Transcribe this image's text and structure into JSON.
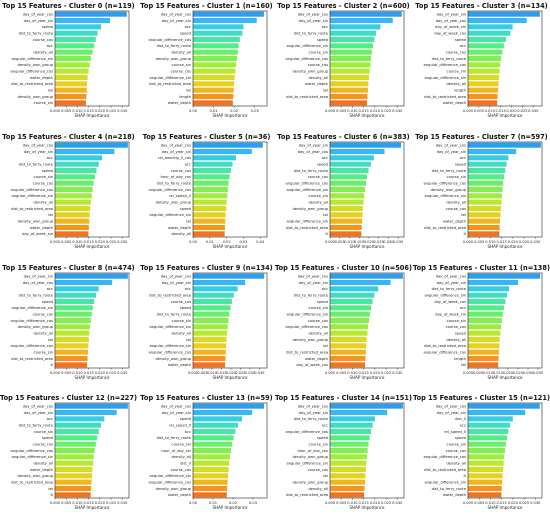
{
  "chart_data": [
    {
      "type": "bar",
      "title": "Top 15 Features - Cluster 0 (n=119)",
      "xlabel": "SHAP Importance",
      "xticks": [
        "0.000",
        "0.005",
        "0.010",
        "0.015",
        "0.020",
        "0.025",
        "0.030"
      ],
      "xlim": [
        0,
        0.033
      ],
      "categories": [
        "day_of_year_cos",
        "day_of_year_sin",
        "speed",
        "dist_to_ferry_route",
        "course_cos",
        "acc",
        "density_all",
        "angular_difference_sin",
        "density_own_group",
        "angular_difference_cos",
        "water_depth",
        "dist_to_restricted_area",
        "lat",
        "density_own_group",
        "course_sin"
      ],
      "values": [
        0.032,
        0.0245,
        0.0205,
        0.019,
        0.0182,
        0.0175,
        0.0168,
        0.016,
        0.0155,
        0.015,
        0.0145,
        0.0143,
        0.0142,
        0.014,
        0.0138
      ]
    },
    {
      "type": "bar",
      "title": "Top 15 Features - Cluster 1 (n=160)",
      "xlabel": "SHAP Importance",
      "xticks": [
        "0.00",
        "0.01",
        "0.02",
        "0.03"
      ],
      "xlim": [
        0,
        0.036
      ],
      "categories": [
        "day_of_year_cos",
        "day_of_year_sin",
        "acc",
        "speed",
        "angular_difference_cos",
        "dist_to_ferry_route",
        "density_all",
        "density_own_group",
        "course_sin",
        "course_cos",
        "angular_difference_sin",
        "dist_to_restricted_area",
        "lat",
        "length",
        "water_depth"
      ],
      "values": [
        0.0345,
        0.031,
        0.0245,
        0.024,
        0.0228,
        0.0222,
        0.0218,
        0.0214,
        0.021,
        0.0206,
        0.0203,
        0.02,
        0.0198,
        0.0196,
        0.0194
      ]
    },
    {
      "type": "bar",
      "title": "Top 15 Features - Cluster 2 (n=600)",
      "xlabel": "SHAP Importance",
      "xticks": [
        "0.000",
        "0.005",
        "0.010",
        "0.015",
        "0.020",
        "0.025",
        "0.030"
      ],
      "xlim": [
        0,
        0.033
      ],
      "categories": [
        "day_of_year_cos",
        "day_of_year_sin",
        "acc",
        "dist_to_ferry_route",
        "speed",
        "angular_difference_sin",
        "course_sin",
        "angular_difference_cos",
        "course_cos",
        "density_own_group",
        "density_all",
        "water_depth",
        "lat",
        "dist_to_restricted_area",
        ""
      ],
      "values": [
        0.032,
        0.028,
        0.0225,
        0.0205,
        0.0198,
        0.0192,
        0.0187,
        0.0183,
        0.018,
        0.0177,
        0.0174,
        0.0171,
        0.0169,
        0.0167,
        0.0165
      ]
    },
    {
      "type": "bar",
      "title": "Top 15 Features - Cluster 3 (n=134)",
      "xlabel": "SHAP Importance",
      "xticks": [
        "0.000",
        "0.005",
        "0.010",
        "0.015",
        "0.020",
        "0.025",
        "0.030"
      ],
      "xlim": [
        0,
        0.034
      ],
      "categories": [
        "day_of_year_sin",
        "day_of_year_cos",
        "day_of_week_sin",
        "day_of_week_cos",
        "speed",
        "acc",
        "course_cos",
        "dist_to_ferry_route",
        "angular_difference_cos",
        "course_sin",
        "angular_difference_sin",
        "density_all",
        "length",
        "dist_to_restricted_area",
        "water_depth"
      ],
      "values": [
        0.033,
        0.027,
        0.0205,
        0.0195,
        0.0175,
        0.0165,
        0.0158,
        0.0152,
        0.0148,
        0.0145,
        0.0142,
        0.014,
        0.0138,
        0.0136,
        0.0134
      ]
    },
    {
      "type": "bar",
      "title": "Top 15 Features - Cluster 4 (n=218)",
      "xlabel": "SHAP Importance",
      "xticks": [
        "0.000",
        "0.005",
        "0.010",
        "0.015",
        "0.020",
        "0.025",
        "0.030"
      ],
      "xlim": [
        0,
        0.033
      ],
      "categories": [
        "day_of_year_cos",
        "day_of_year_sin",
        "acc",
        "dist_to_ferry_route",
        "speed",
        "course_sin",
        "course_cos",
        "angular_difference_cos",
        "angular_difference_sin",
        "density_all",
        "dist_to_restricted_area",
        "lat",
        "density_own_group",
        "water_depth",
        "day_of_week_sin"
      ],
      "values": [
        0.0325,
        0.0265,
        0.021,
        0.0195,
        0.0185,
        0.0178,
        0.0172,
        0.0168,
        0.0164,
        0.016,
        0.0157,
        0.0155,
        0.0153,
        0.0151,
        0.0149
      ]
    },
    {
      "type": "bar",
      "title": "Top 15 Features - Cluster 5 (n=36)",
      "xlabel": "SHAP Importance",
      "xticks": [
        "0.00",
        "0.01",
        "0.02",
        "0.03",
        "0.04"
      ],
      "xlim": [
        0,
        0.044
      ],
      "categories": [
        "day_of_year_cos",
        "day_of_year_sin",
        "rel_bearing_0_cos",
        "acc",
        "course_cos",
        "hour_of_day_cos",
        "dist_to_ferry_route",
        "angular_difference_cos",
        "rel_speed_0",
        "density_own_group",
        "speed",
        "angular_difference_sin",
        "lat",
        "water_depth",
        "density_all"
      ],
      "values": [
        0.0415,
        0.035,
        0.0255,
        0.0235,
        0.0225,
        0.0218,
        0.0212,
        0.0208,
        0.0204,
        0.02,
        0.0197,
        0.0194,
        0.0192,
        0.019,
        0.0188
      ]
    },
    {
      "type": "bar",
      "title": "Top 15 Features - Cluster 6 (n=383)",
      "xlabel": "SHAP Importance",
      "xticks": [
        "0.000",
        "0.005",
        "0.010",
        "0.015",
        "0.020",
        "0.025",
        "0.030",
        "0.035"
      ],
      "xlim": [
        0,
        0.038
      ],
      "categories": [
        "day_of_year_sin",
        "day_of_year_cos",
        "acc",
        "speed",
        "dist_to_ferry_route",
        "course_cos",
        "angular_difference_cos",
        "angular_difference_sin",
        "course_sin",
        "density_all",
        "density_own_group",
        "lat",
        "angular_difference_sin",
        "dist_to_restricted_area",
        "lt"
      ],
      "values": [
        0.0365,
        0.028,
        0.0225,
        0.021,
        0.0198,
        0.019,
        0.0185,
        0.018,
        0.0176,
        0.0172,
        0.0169,
        0.0167,
        0.0165,
        0.0163,
        0.0161
      ]
    },
    {
      "type": "bar",
      "title": "Top 15 Features - Cluster 7 (n=597)",
      "xlabel": "SHAP Importance",
      "xticks": [
        "0.000",
        "0.005",
        "0.010",
        "0.015",
        "0.020",
        "0.025",
        "0.030"
      ],
      "xlim": [
        0,
        0.033
      ],
      "categories": [
        "day_of_year_cos",
        "day_of_year_sin",
        "acc",
        "speed",
        "dist_to_ferry_route",
        "course_sin",
        "angular_difference_cos",
        "density_own_group",
        "angular_difference_sin",
        "density_all",
        "course_cos",
        "lat",
        "water_depth",
        "dist_to_restricted_area",
        "lt"
      ],
      "values": [
        0.0325,
        0.0215,
        0.018,
        0.0172,
        0.0166,
        0.0161,
        0.0157,
        0.0154,
        0.0151,
        0.0149,
        0.0147,
        0.0145,
        0.0143,
        0.0141,
        0.014
      ]
    },
    {
      "type": "bar",
      "title": "Top 15 Features - Cluster 8 (n=474)",
      "xlabel": "SHAP Importance",
      "xticks": [
        "0.000",
        "0.005",
        "0.010",
        "0.015",
        "0.020",
        "0.025",
        "0.030"
      ],
      "xlim": [
        0,
        0.033
      ],
      "categories": [
        "day_of_year_sin",
        "day_of_year_cos",
        "acc",
        "dist_to_ferry_route",
        "speed",
        "angular_difference_sin",
        "course_cos",
        "angular_difference_cos",
        "density_own_group",
        "density_all",
        "lat",
        "angular_difference_cos",
        "course_sin",
        "dist_to_restricted_area",
        "lt"
      ],
      "values": [
        0.0325,
        0.0255,
        0.0195,
        0.0183,
        0.0175,
        0.0169,
        0.0164,
        0.016,
        0.0156,
        0.0153,
        0.0151,
        0.0149,
        0.0147,
        0.0145,
        0.0143
      ]
    },
    {
      "type": "bar",
      "title": "Top 15 Features - Cluster 9 (n=134)",
      "xlabel": "SHAP Importance",
      "xticks": [
        "0.000",
        "0.005",
        "0.010",
        "0.015",
        "0.020",
        "0.025",
        "0.030",
        "0.035"
      ],
      "xlim": [
        0,
        0.039
      ],
      "categories": [
        "day_of_year_cos",
        "day_of_year_sin",
        "acc",
        "dist_to_restricted_area",
        "course_cos",
        "speed",
        "dist_to_ferry_route",
        "course_sin",
        "angular_difference_sin",
        "density_all",
        "lat",
        "angular_difference_sin",
        "angular_difference_cos",
        "density_own_group",
        "water_depth"
      ],
      "values": [
        0.0375,
        0.0275,
        0.0235,
        0.0215,
        0.0205,
        0.0198,
        0.0192,
        0.0187,
        0.0183,
        0.018,
        0.0177,
        0.0175,
        0.0173,
        0.0171,
        0.0169
      ]
    },
    {
      "type": "bar",
      "title": "Top 15 Features - Cluster 10 (n=506)",
      "xlabel": "SHAP Importance",
      "xticks": [
        "0.000",
        "0.005",
        "0.010",
        "0.015",
        "0.020",
        "0.025",
        "0.030"
      ],
      "xlim": [
        0,
        0.033
      ],
      "categories": [
        "day_of_year_cos",
        "day_of_year_sin",
        "acc",
        "dist_to_ferry_route",
        "speed",
        "course_sin",
        "angular_difference_sin",
        "course_cos",
        "angular_difference_cos",
        "density_all",
        "density_own_group",
        "lat",
        "dist_to_restricted_area",
        "water_depth",
        "day_of_week_cos"
      ],
      "values": [
        0.0325,
        0.027,
        0.0215,
        0.0198,
        0.019,
        0.0183,
        0.0178,
        0.0174,
        0.017,
        0.0167,
        0.0164,
        0.0162,
        0.016,
        0.0158,
        0.0156
      ]
    },
    {
      "type": "bar",
      "title": "Top 15 Features - Cluster 11 (n=138)",
      "xlabel": "SHAP Importance",
      "xticks": [
        "0.000",
        "0.005",
        "0.010",
        "0.015",
        "0.020",
        "0.025",
        "0.030",
        "0.035"
      ],
      "xlim": [
        0,
        0.037
      ],
      "categories": [
        "day_of_year_cos",
        "day_of_year_sin",
        "dist_to_ferry_route",
        "angular_difference_sin",
        "day_of_week_cos",
        "acc",
        "day_of_week_sin",
        "course_sin",
        "course_cos",
        "speed",
        "density_all",
        "dist_to_restricted_area",
        "angular_difference_cos",
        "length",
        "lat"
      ],
      "values": [
        0.036,
        0.025,
        0.0205,
        0.0195,
        0.0187,
        0.018,
        0.0174,
        0.0169,
        0.0165,
        0.0162,
        0.0159,
        0.0157,
        0.0155,
        0.0153,
        0.0151
      ]
    },
    {
      "type": "bar",
      "title": "Top 15 Features - Cluster 12 (n=227)",
      "xlabel": "SHAP Importance",
      "xticks": [
        "0.000",
        "0.005",
        "0.010",
        "0.015",
        "0.020",
        "0.025",
        "0.030"
      ],
      "xlim": [
        0,
        0.033
      ],
      "categories": [
        "day_of_year_cos",
        "day_of_year_sin",
        "acc",
        "dist_to_ferry_route",
        "course_sin",
        "speed",
        "course_cos",
        "angular_difference_cos",
        "angular_difference_sin",
        "density_all",
        "water_depth",
        "density_own_group",
        "dist_to_restricted_area",
        "lat",
        "lt"
      ],
      "values": [
        0.0325,
        0.0275,
        0.022,
        0.0205,
        0.0195,
        0.0188,
        0.0182,
        0.0177,
        0.0173,
        0.017,
        0.0167,
        0.0165,
        0.0163,
        0.0161,
        0.0159
      ]
    },
    {
      "type": "bar",
      "title": "Top 15 Features - Cluster 13 (n=59)",
      "xlabel": "SHAP Importance",
      "xticks": [
        "0.00",
        "0.01",
        "0.02",
        "0.03"
      ],
      "xlim": [
        0,
        0.037
      ],
      "categories": [
        "day_of_year_cos",
        "day_of_year_sin",
        "speed",
        "rel_speed_0",
        "acc",
        "dist_to_ferry_route",
        "course_sin",
        "hour_of_day_sin",
        "density_all",
        "dist_0",
        "course_cos",
        "angular_difference_sin",
        "angular_difference_cos",
        "density_own_group",
        "water_depth"
      ],
      "values": [
        0.0355,
        0.0295,
        0.0245,
        0.0225,
        0.0212,
        0.0203,
        0.0196,
        0.019,
        0.0185,
        0.0181,
        0.0178,
        0.0175,
        0.0173,
        0.0171,
        0.0169
      ]
    },
    {
      "type": "bar",
      "title": "Top 15 Features - Cluster 14 (n=151)",
      "xlabel": "SHAP Importance",
      "xticks": [
        "0.000",
        "0.005",
        "0.010",
        "0.015",
        "0.020",
        "0.025",
        "0.030"
      ],
      "xlim": [
        0,
        0.033
      ],
      "categories": [
        "day_of_year_cos",
        "day_of_year_sin",
        "dist_to_ferry_route",
        "acc",
        "angular_difference_cos",
        "speed",
        "course_sin",
        "hour_of_day_cos",
        "density_own_group",
        "angular_difference_sin",
        "course_cos",
        "lat",
        "density_own_group",
        "density_all",
        "dist_to_restricted_area"
      ],
      "values": [
        0.0325,
        0.0255,
        0.02,
        0.019,
        0.0183,
        0.0177,
        0.0172,
        0.0168,
        0.0165,
        0.0162,
        0.016,
        0.0158,
        0.0156,
        0.0154,
        0.0152
      ]
    },
    {
      "type": "bar",
      "title": "Top 15 Features - Cluster 15 (n=121)",
      "xlabel": "SHAP Importance",
      "xticks": [
        "0.000",
        "0.005",
        "0.010",
        "0.015",
        "0.020",
        "0.025",
        "0.030"
      ],
      "xlim": [
        0,
        0.033
      ],
      "categories": [
        "day_of_year_cos",
        "day_of_year_sin",
        "dist_0",
        "acc",
        "rel_speed_0",
        "speed",
        "course_sin",
        "course_cos",
        "angular_difference_cos",
        "density_all",
        "dist_to_restricted_area",
        "lt",
        "angular_difference_sin",
        "dist_to_ferry_route",
        "water_depth"
      ],
      "values": [
        0.032,
        0.0255,
        0.02,
        0.0188,
        0.018,
        0.0174,
        0.0169,
        0.0165,
        0.0162,
        0.0159,
        0.0157,
        0.0155,
        0.0153,
        0.0151,
        0.0149
      ]
    }
  ]
}
